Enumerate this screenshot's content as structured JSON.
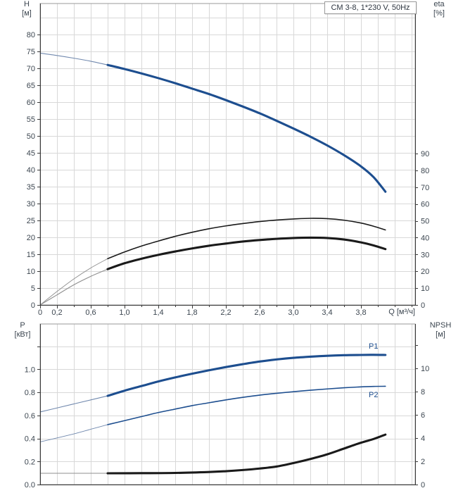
{
  "header": {
    "title": "CM 3-8, 1*230 V, 50Hz"
  },
  "labels": {
    "p1": "P1",
    "p2": "P2"
  },
  "colors": {
    "curve_blue": "#1d4e8f",
    "curve_blue_thin": "#7189ae",
    "curve_black": "#1a1a1a",
    "curve_black_thin": "#8f8f8f",
    "grid": "#d8d8d8",
    "frame": "#9a9a9a",
    "axis": "#3a3a3a",
    "text": "#3c4650"
  },
  "chart_data": [
    {
      "type": "line",
      "title": "CM 3-8, 1*230 V, 50Hz",
      "x_axis": {
        "label": "Q [м³/ч]",
        "min": 0,
        "max": 4.442,
        "minor_step": 0.2,
        "show_ticks": true,
        "ticks": [
          [
            0,
            "0"
          ],
          [
            0.2,
            "0,2"
          ],
          [
            0.6,
            "0,6"
          ],
          [
            1,
            "1,0"
          ],
          [
            1.4,
            "1,4"
          ],
          [
            1.8,
            "1,8"
          ],
          [
            2.2,
            "2,2"
          ],
          [
            2.6,
            "2,6"
          ],
          [
            3,
            "3,0"
          ],
          [
            3.4,
            "3,4"
          ],
          [
            3.8,
            "3,8"
          ]
        ]
      },
      "y_left": {
        "label": "H",
        "unit": "[м]",
        "min": 0,
        "max": 89.17,
        "ticks": [
          [
            0,
            "0"
          ],
          [
            5,
            "5"
          ],
          [
            10,
            "10"
          ],
          [
            15,
            "15"
          ],
          [
            20,
            "20"
          ],
          [
            25,
            "25"
          ],
          [
            30,
            "30"
          ],
          [
            35,
            "35"
          ],
          [
            40,
            "40"
          ],
          [
            45,
            "45"
          ],
          [
            50,
            "50"
          ],
          [
            55,
            "55"
          ],
          [
            60,
            "60"
          ],
          [
            65,
            "65"
          ],
          [
            70,
            "70"
          ],
          [
            75,
            "75"
          ],
          [
            80,
            "80"
          ]
        ],
        "extra_ticks": []
      },
      "y_right": {
        "label": "eta",
        "unit": "[%]",
        "min": 0,
        "max": 179.2,
        "ticks": [
          [
            0,
            "0"
          ],
          [
            10,
            "10"
          ],
          [
            20,
            "20"
          ],
          [
            30,
            "30"
          ],
          [
            40,
            "40"
          ],
          [
            50,
            "50"
          ],
          [
            60,
            "60"
          ],
          [
            70,
            "70"
          ],
          [
            80,
            "80"
          ],
          [
            90,
            "90"
          ]
        ],
        "extra_ticks": []
      },
      "grid": {
        "axis": "left",
        "step": 5,
        "max": 85
      },
      "series": [
        {
          "name": "H",
          "axis": "left",
          "color": "blue",
          "role": "primary",
          "thick_from": 0.8,
          "points": [
            [
              0,
              74.5
            ],
            [
              0.2,
              73.8
            ],
            [
              0.4,
              73
            ],
            [
              0.6,
              72.1
            ],
            [
              0.8,
              71
            ],
            [
              1,
              69.8
            ],
            [
              1.2,
              68.5
            ],
            [
              1.4,
              67.1
            ],
            [
              1.6,
              65.6
            ],
            [
              1.8,
              64
            ],
            [
              2,
              62.4
            ],
            [
              2.2,
              60.6
            ],
            [
              2.4,
              58.7
            ],
            [
              2.6,
              56.7
            ],
            [
              2.8,
              54.5
            ],
            [
              3,
              52.2
            ],
            [
              3.2,
              49.8
            ],
            [
              3.4,
              47.2
            ],
            [
              3.6,
              44.3
            ],
            [
              3.8,
              41
            ],
            [
              3.95,
              37.8
            ],
            [
              4.09,
              33.5
            ]
          ]
        },
        {
          "name": "eta-pump",
          "axis": "right",
          "color": "black",
          "role": "secondary",
          "thick_from": 0.8,
          "points": [
            [
              0,
              0
            ],
            [
              0.2,
              8
            ],
            [
              0.4,
              15.5
            ],
            [
              0.6,
              22
            ],
            [
              0.8,
              27.5
            ],
            [
              1,
              31.5
            ],
            [
              1.2,
              35
            ],
            [
              1.4,
              38
            ],
            [
              1.6,
              40.8
            ],
            [
              1.8,
              43.2
            ],
            [
              2,
              45.3
            ],
            [
              2.2,
              47
            ],
            [
              2.4,
              48.4
            ],
            [
              2.6,
              49.6
            ],
            [
              2.8,
              50.5
            ],
            [
              3,
              51.1
            ],
            [
              3.2,
              51.5
            ],
            [
              3.4,
              51.3
            ],
            [
              3.6,
              50.4
            ],
            [
              3.8,
              48.7
            ],
            [
              3.95,
              46.8
            ],
            [
              4.09,
              44.6
            ]
          ]
        },
        {
          "name": "eta-pump-motor",
          "axis": "right",
          "color": "black",
          "role": "primary",
          "thick_from": 0.8,
          "points": [
            [
              0,
              0
            ],
            [
              0.2,
              6
            ],
            [
              0.4,
              12
            ],
            [
              0.6,
              17
            ],
            [
              0.8,
              21.3
            ],
            [
              1,
              24.8
            ],
            [
              1.2,
              27.5
            ],
            [
              1.4,
              29.8
            ],
            [
              1.6,
              31.8
            ],
            [
              1.8,
              33.6
            ],
            [
              2,
              35.2
            ],
            [
              2.2,
              36.5
            ],
            [
              2.4,
              37.7
            ],
            [
              2.6,
              38.6
            ],
            [
              2.8,
              39.3
            ],
            [
              3,
              39.8
            ],
            [
              3.2,
              40
            ],
            [
              3.4,
              39.8
            ],
            [
              3.6,
              38.9
            ],
            [
              3.8,
              37.2
            ],
            [
              3.95,
              35.4
            ],
            [
              4.09,
              33.2
            ]
          ]
        }
      ]
    },
    {
      "type": "line",
      "x_axis": {
        "label": "",
        "min": 0,
        "max": 4.442,
        "minor_step": 0.2,
        "show_ticks": false,
        "ticks": []
      },
      "y_left": {
        "label": "P",
        "unit": "[кВт]",
        "min": 0,
        "max": 1.394,
        "ticks": [
          [
            0,
            "0.0"
          ],
          [
            0.2,
            "0.2"
          ],
          [
            0.4,
            "0.4"
          ],
          [
            0.6,
            "0.6"
          ],
          [
            0.8,
            "0.8"
          ],
          [
            1,
            "1.0"
          ]
        ],
        "extra_ticks": [
          1.2
        ]
      },
      "y_right": {
        "label": "NPSH",
        "unit": "[м]",
        "min": 0,
        "max": 13.82,
        "ticks": [
          [
            0,
            "0"
          ],
          [
            2,
            "2"
          ],
          [
            4,
            "4"
          ],
          [
            6,
            "6"
          ],
          [
            8,
            "8"
          ],
          [
            10,
            "10"
          ]
        ],
        "extra_ticks": [
          12
        ]
      },
      "grid": {
        "axis": "left",
        "step": 0.2,
        "max": 1.39
      },
      "series": [
        {
          "name": "P1",
          "axis": "left",
          "color": "blue",
          "role": "primary",
          "thick_from": 0.8,
          "label": "P1",
          "points": [
            [
              0,
              0.63
            ],
            [
              0.2,
              0.665
            ],
            [
              0.4,
              0.7
            ],
            [
              0.6,
              0.735
            ],
            [
              0.8,
              0.77
            ],
            [
              1,
              0.815
            ],
            [
              1.2,
              0.855
            ],
            [
              1.4,
              0.895
            ],
            [
              1.6,
              0.93
            ],
            [
              1.8,
              0.962
            ],
            [
              2,
              0.992
            ],
            [
              2.2,
              1.02
            ],
            [
              2.4,
              1.045
            ],
            [
              2.6,
              1.068
            ],
            [
              2.8,
              1.086
            ],
            [
              3,
              1.1
            ],
            [
              3.2,
              1.11
            ],
            [
              3.4,
              1.118
            ],
            [
              3.6,
              1.123
            ],
            [
              3.8,
              1.125
            ],
            [
              3.95,
              1.126
            ],
            [
              4.09,
              1.125
            ]
          ]
        },
        {
          "name": "P2",
          "axis": "left",
          "color": "blue",
          "role": "secondary",
          "thick_from": 0.8,
          "label": "P2",
          "points": [
            [
              0,
              0.37
            ],
            [
              0.2,
              0.405
            ],
            [
              0.4,
              0.44
            ],
            [
              0.6,
              0.48
            ],
            [
              0.8,
              0.52
            ],
            [
              1,
              0.555
            ],
            [
              1.2,
              0.59
            ],
            [
              1.4,
              0.625
            ],
            [
              1.6,
              0.655
            ],
            [
              1.8,
              0.685
            ],
            [
              2,
              0.71
            ],
            [
              2.2,
              0.735
            ],
            [
              2.4,
              0.757
            ],
            [
              2.6,
              0.776
            ],
            [
              2.8,
              0.792
            ],
            [
              3,
              0.806
            ],
            [
              3.2,
              0.819
            ],
            [
              3.4,
              0.83
            ],
            [
              3.6,
              0.84
            ],
            [
              3.8,
              0.848
            ],
            [
              3.95,
              0.852
            ],
            [
              4.09,
              0.853
            ]
          ]
        },
        {
          "name": "NPSH",
          "axis": "right",
          "color": "black",
          "role": "primary",
          "thick_from": 0.8,
          "points": [
            [
              0,
              0.97
            ],
            [
              0.4,
              0.97
            ],
            [
              0.8,
              0.97
            ],
            [
              1.2,
              0.98
            ],
            [
              1.6,
              1
            ],
            [
              2,
              1.08
            ],
            [
              2.2,
              1.15
            ],
            [
              2.4,
              1.25
            ],
            [
              2.6,
              1.38
            ],
            [
              2.8,
              1.55
            ],
            [
              3,
              1.85
            ],
            [
              3.2,
              2.2
            ],
            [
              3.4,
              2.6
            ],
            [
              3.6,
              3.1
            ],
            [
              3.8,
              3.6
            ],
            [
              3.95,
              3.92
            ],
            [
              4.09,
              4.3
            ]
          ]
        }
      ]
    }
  ]
}
